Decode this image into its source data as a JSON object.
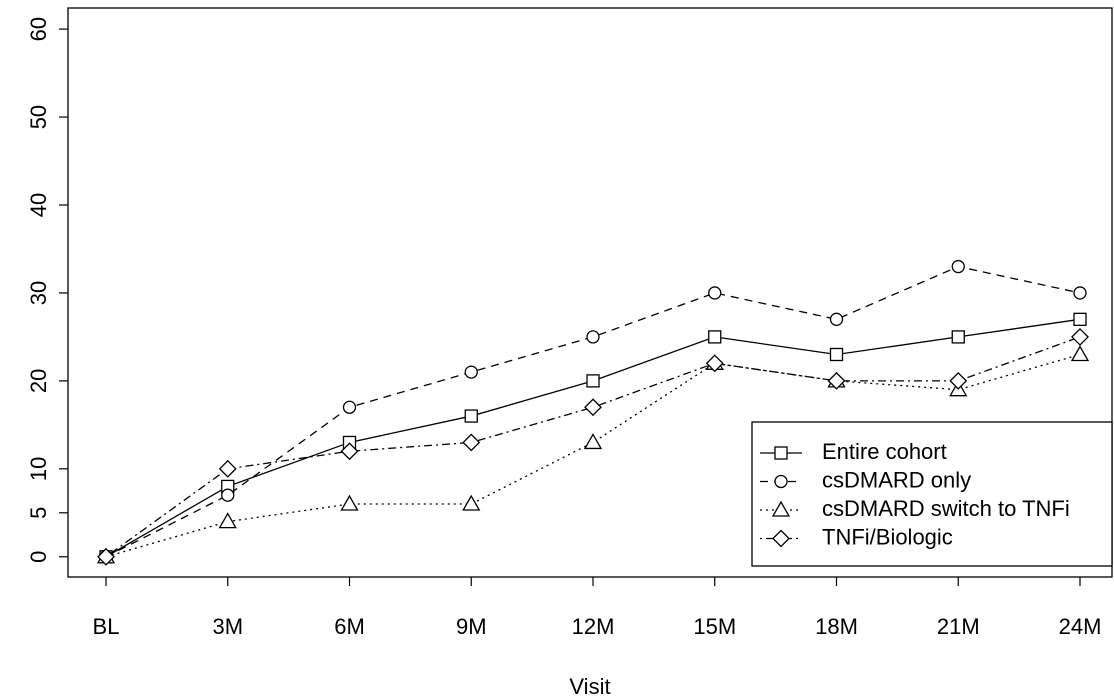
{
  "chart_data": {
    "type": "line",
    "x_label": "Visit",
    "categories": [
      "BL",
      "3M",
      "6M",
      "9M",
      "12M",
      "15M",
      "18M",
      "21M",
      "24M"
    ],
    "series": [
      {
        "name": "Entire cohort",
        "color": "#000000",
        "linestyle": "solid",
        "marker": "square",
        "values": [
          0,
          8,
          13,
          16,
          20,
          25,
          23,
          25,
          27
        ]
      },
      {
        "name": "csDMARD only",
        "color": "#000000",
        "linestyle": "dashed",
        "marker": "circle",
        "values": [
          0,
          7,
          17,
          21,
          25,
          30,
          27,
          33,
          30
        ]
      },
      {
        "name": "csDMARD switch to TNFi",
        "color": "#000000",
        "linestyle": "dotted",
        "marker": "triangle",
        "values": [
          0,
          4,
          6,
          6,
          13,
          22,
          20,
          19,
          23
        ]
      },
      {
        "name": "TNFi/Biologic",
        "color": "#000000",
        "linestyle": "dotdash",
        "marker": "diamond",
        "values": [
          0,
          10,
          12,
          13,
          17,
          22,
          20,
          20,
          25
        ]
      }
    ],
    "ylim": [
      -2.3,
      62.4
    ],
    "yticks": [
      0,
      5,
      10,
      20,
      30,
      40,
      50,
      60
    ],
    "legend_position": "lower right",
    "grid": false
  }
}
